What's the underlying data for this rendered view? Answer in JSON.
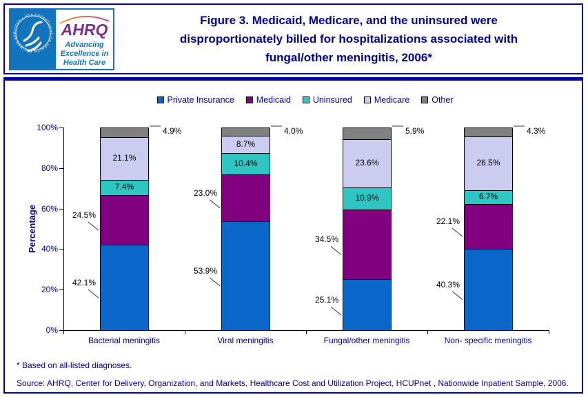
{
  "header": {
    "title_lines": [
      "Figure 3. Medicaid, Medicare, and the uninsured were",
      "disproportionately billed for hospitalizations associated with",
      "fungal/other meningitis, 2006*"
    ],
    "logo": {
      "acronym": "AHRQ",
      "tagline": [
        "Advancing",
        "Excellence in",
        "Health Care"
      ],
      "seal_text": "DEPARTMENT OF HEALTH & HUMAN SERVICES • USA",
      "seal_icon": "hhs-eagle-icon",
      "swoosh_icon": "arc-swoosh-icon"
    }
  },
  "colors": {
    "panel_border": "#0000A0",
    "title_text": "#000099",
    "axis_text": "#000099",
    "data_label_text": "#000000",
    "leader_line": "#333333"
  },
  "chart_data": {
    "type": "bar",
    "subtype": "stacked-percent-column",
    "title": "Figure 3. Medicaid, Medicare, and the uninsured were disproportionately billed for hospitalizations associated with fungal/other meningitis, 2006*",
    "categories": [
      "Bacterial meningitis",
      "Viral meningitis",
      "Fungal/other meningitis",
      "Non- specific meningitis"
    ],
    "series": [
      {
        "name": "Private Insurance",
        "color": "#0A66C8",
        "values": [
          42.1,
          53.9,
          25.1,
          40.3
        ],
        "label_placement": "left-leader"
      },
      {
        "name": "Medicaid",
        "color": "#800080",
        "values": [
          24.5,
          23.0,
          34.5,
          22.1
        ],
        "label_placement": "left-leader"
      },
      {
        "name": "Uninsured",
        "color": "#2EC6C2",
        "values": [
          7.4,
          10.4,
          10.9,
          6.7
        ],
        "label_placement": "inside"
      },
      {
        "name": "Medicare",
        "color": "#CCCCF0",
        "values": [
          21.1,
          8.7,
          23.6,
          26.5
        ],
        "label_placement": "inside"
      },
      {
        "name": "Other",
        "color": "#808080",
        "values": [
          4.9,
          4.0,
          5.9,
          4.3
        ],
        "label_placement": "right-leader"
      }
    ],
    "ylabel": "Percentage",
    "yticks": [
      "0%",
      "20%",
      "40%",
      "60%",
      "80%",
      "100%"
    ],
    "ylim": [
      0,
      100
    ],
    "value_suffix": "%",
    "grid": false,
    "legend_position": "top-center"
  },
  "footnotes": {
    "note": "* Based on all-listed diagnoses.",
    "source": "Source: AHRQ, Center for Delivery, Organization, and Markets, Healthcare Cost and Utilization Project, HCUPnet , Nationwide Inpatient Sample, 2006."
  }
}
